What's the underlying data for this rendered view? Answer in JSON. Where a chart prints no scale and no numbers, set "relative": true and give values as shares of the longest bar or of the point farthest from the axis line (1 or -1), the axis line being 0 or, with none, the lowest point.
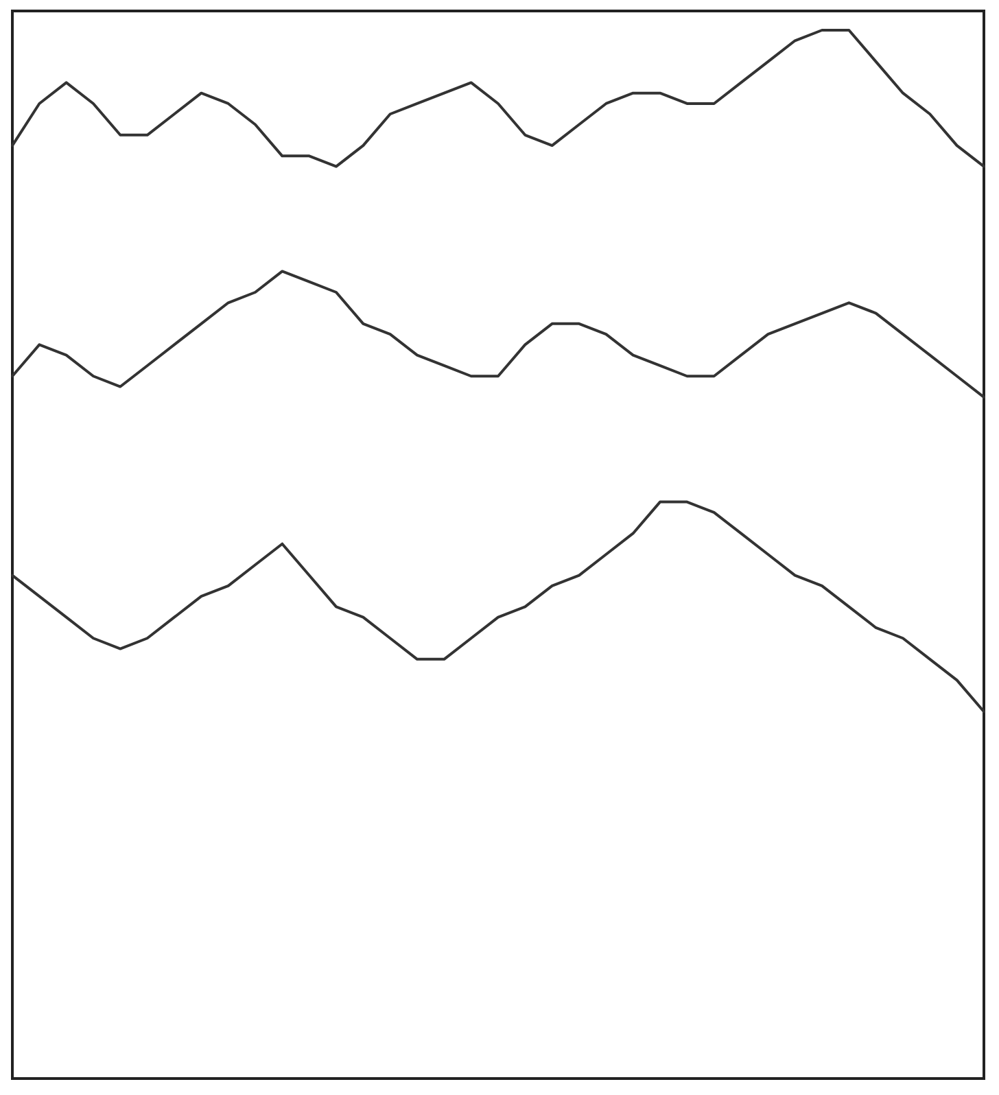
{
  "chart_data": {
    "type": "line",
    "relative": true,
    "legend": false,
    "marker": "none",
    "line_style": "solid",
    "categories": [
      null,
      null,
      null,
      null,
      null,
      null,
      null,
      null,
      null,
      null,
      null,
      null,
      null,
      null,
      null,
      null,
      null,
      null,
      null,
      null,
      null,
      null,
      null,
      null,
      null,
      null,
      null,
      null,
      null,
      null,
      null,
      null,
      null,
      null,
      null,
      null,
      null
    ],
    "series": [
      {
        "color": "#333333",
        "values": [
          0.89,
          0.93,
          0.95,
          0.93,
          0.9,
          0.9,
          0.92,
          0.94,
          0.93,
          0.91,
          0.88,
          0.88,
          0.87,
          0.89,
          0.92,
          0.93,
          0.94,
          0.95,
          0.93,
          0.9,
          0.89,
          0.91,
          0.93,
          0.94,
          0.94,
          0.93,
          0.93,
          0.95,
          0.97,
          0.99,
          1.0,
          1.0,
          0.97,
          0.94,
          0.92,
          0.89,
          0.87
        ]
      },
      {
        "color": "#333333",
        "values": [
          0.67,
          0.7,
          0.69,
          0.67,
          0.66,
          0.68,
          0.7,
          0.72,
          0.74,
          0.75,
          0.77,
          0.76,
          0.75,
          0.72,
          0.71,
          0.69,
          0.68,
          0.67,
          0.67,
          0.7,
          0.72,
          0.72,
          0.71,
          0.69,
          0.68,
          0.67,
          0.67,
          0.69,
          0.71,
          0.72,
          0.73,
          0.74,
          0.73,
          0.71,
          0.69,
          0.67,
          0.65
        ]
      },
      {
        "color": "#333333",
        "values": [
          0.48,
          0.46,
          0.44,
          0.42,
          0.41,
          0.42,
          0.44,
          0.46,
          0.47,
          0.49,
          0.51,
          0.48,
          0.45,
          0.44,
          0.42,
          0.4,
          0.4,
          0.42,
          0.44,
          0.45,
          0.47,
          0.48,
          0.5,
          0.52,
          0.55,
          0.55,
          0.54,
          0.52,
          0.5,
          0.48,
          0.47,
          0.45,
          0.43,
          0.42,
          0.4,
          0.38,
          0.35
        ]
      }
    ]
  }
}
